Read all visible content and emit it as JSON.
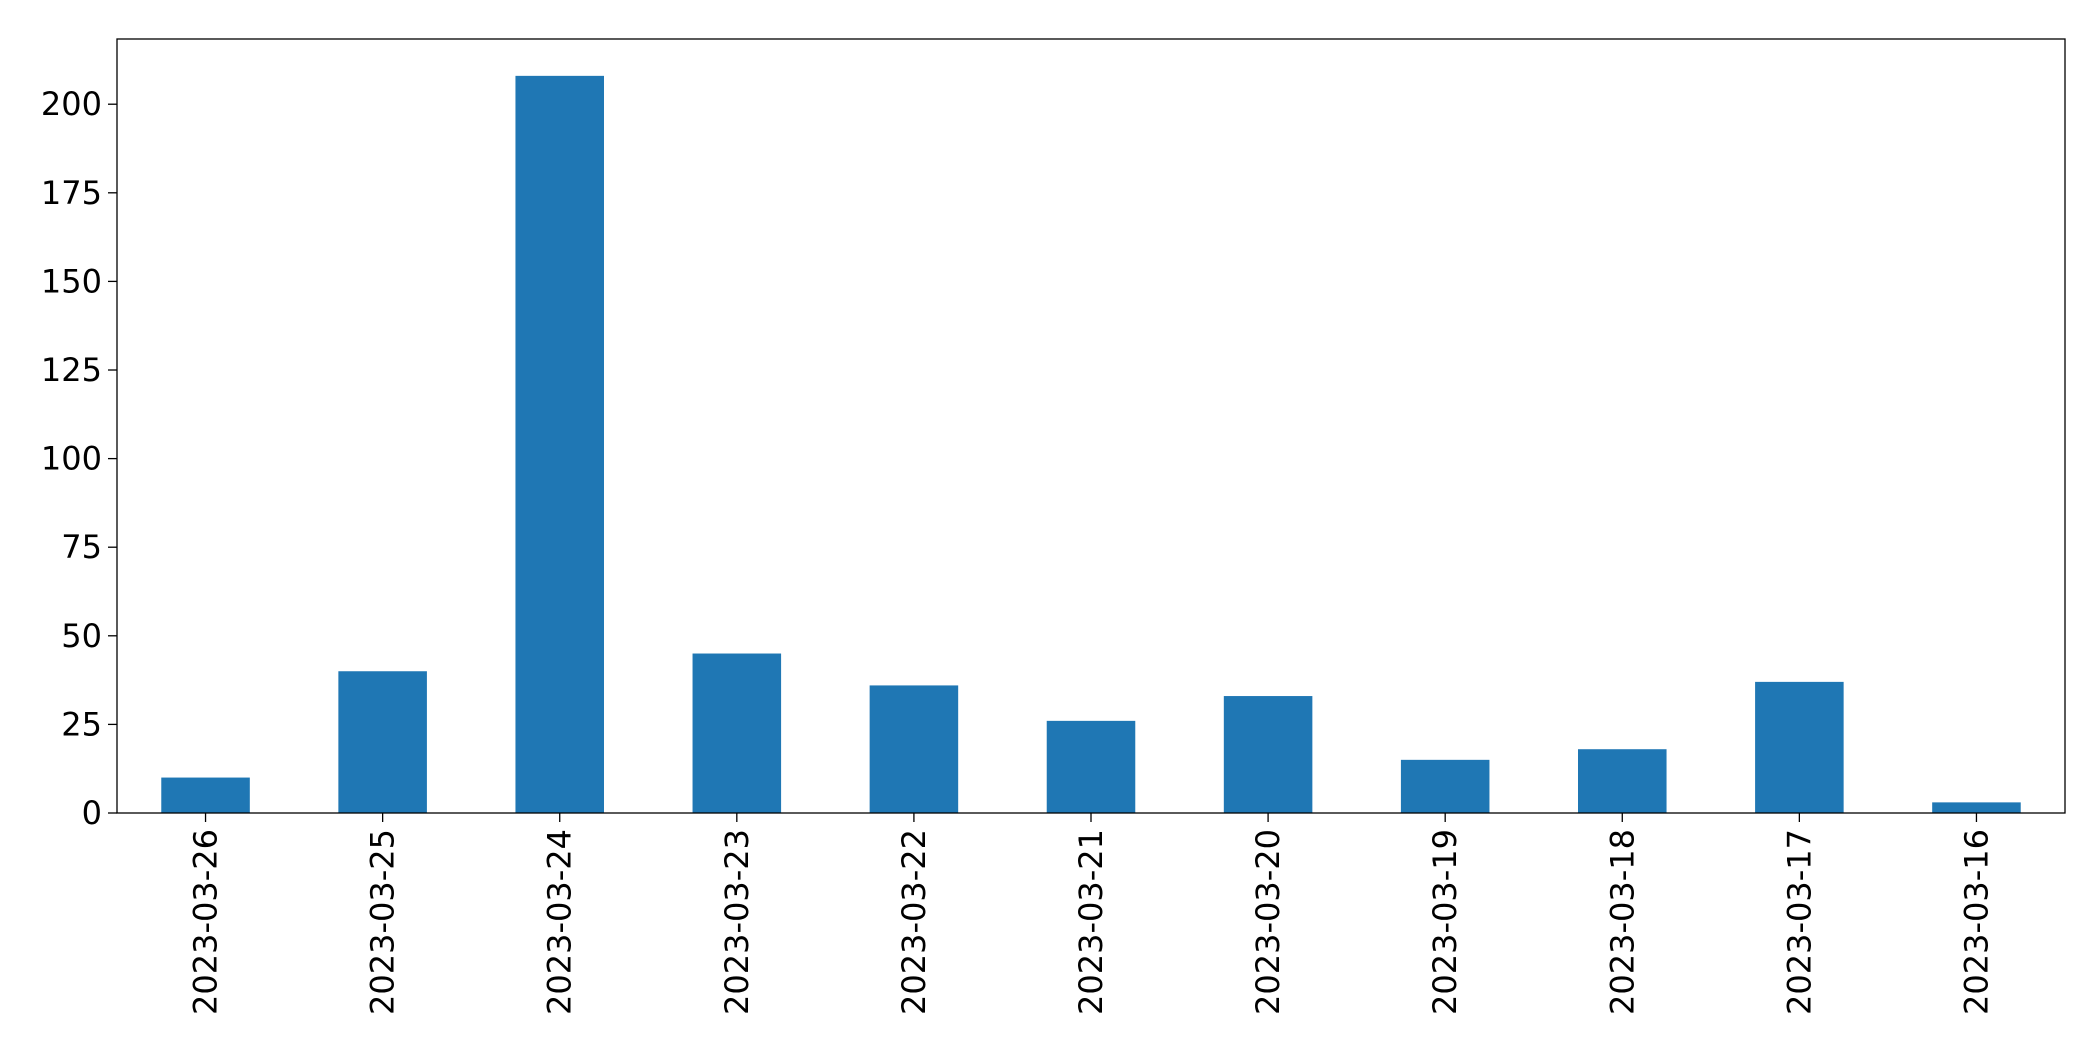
{
  "chart_data": {
    "type": "bar",
    "categories": [
      "2023-03-26",
      "2023-03-25",
      "2023-03-24",
      "2023-03-23",
      "2023-03-22",
      "2023-03-21",
      "2023-03-20",
      "2023-03-19",
      "2023-03-18",
      "2023-03-17",
      "2023-03-16"
    ],
    "values": [
      10,
      40,
      208,
      45,
      36,
      26,
      33,
      15,
      18,
      37,
      3
    ],
    "color": "#1f77b4",
    "ylim": [
      0,
      218.4
    ],
    "yticks": [
      0,
      25,
      50,
      75,
      100,
      125,
      150,
      175,
      200
    ],
    "grid": false
  }
}
